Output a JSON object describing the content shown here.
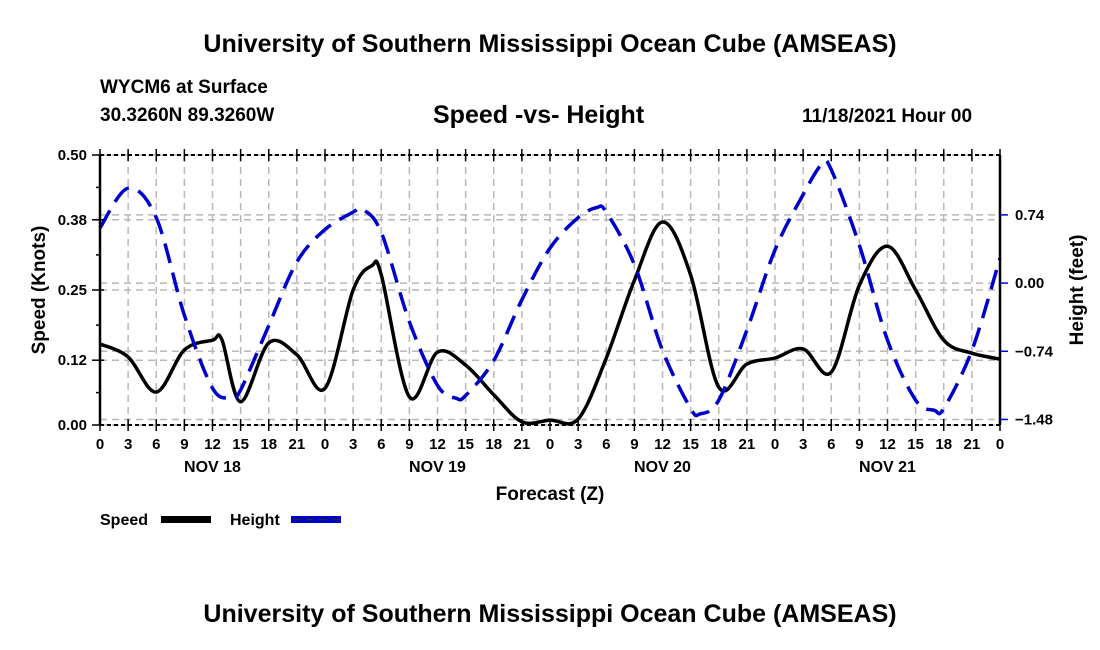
{
  "header": {
    "title": "University of Southern Mississippi Ocean Cube (AMSEAS)",
    "station": "WYCM6 at Surface",
    "coords": "30.3260N  89.3260W",
    "subtitle": "Speed -vs- Height",
    "datetime": "11/18/2021 Hour 00"
  },
  "footer": {
    "title": "University of Southern Mississippi Ocean Cube (AMSEAS)"
  },
  "chart_data": {
    "type": "line",
    "title": "Speed -vs- Height",
    "xlabel": "Forecast (Z)",
    "ylabel": "Speed (Knots)",
    "y2label": "Height (feet)",
    "xlim": [
      0,
      96
    ],
    "ylim": [
      0.0,
      0.5
    ],
    "y2lim": [
      -1.54,
      1.39
    ],
    "grid": true,
    "legend": "bottom-left",
    "x_ticks": [
      0,
      3,
      6,
      9,
      12,
      15,
      18,
      21,
      24,
      27,
      30,
      33,
      36,
      39,
      42,
      45,
      48,
      51,
      54,
      57,
      60,
      63,
      66,
      69,
      72,
      75,
      78,
      81,
      84,
      87,
      90,
      93,
      96
    ],
    "x_tick_labels": [
      "0",
      "3",
      "6",
      "9",
      "12",
      "15",
      "18",
      "21",
      "0",
      "3",
      "6",
      "9",
      "12",
      "15",
      "18",
      "21",
      "0",
      "3",
      "6",
      "9",
      "12",
      "15",
      "18",
      "21",
      "0",
      "3",
      "6",
      "9",
      "12",
      "15",
      "18",
      "21",
      "0"
    ],
    "day_labels": [
      {
        "label": "NOV 18",
        "hour": 12
      },
      {
        "label": "NOV 19",
        "hour": 36
      },
      {
        "label": "NOV 20",
        "hour": 60
      },
      {
        "label": "NOV 21",
        "hour": 84
      }
    ],
    "y_ticks": [
      0.0,
      0.12,
      0.25,
      0.38,
      0.5
    ],
    "y_tick_labels": [
      "0.00",
      "0.12",
      "0.25",
      "0.38",
      "0.50"
    ],
    "y2_ticks": [
      0.74,
      0.0,
      -0.74,
      -1.48
    ],
    "y2_tick_labels": [
      "0.74",
      "0.00",
      "−0.74",
      "−1.48"
    ],
    "series": [
      {
        "name": "Speed",
        "axis": "left",
        "color": "#000000",
        "style": "solid",
        "x": [
          0,
          3,
          6,
          9,
          12,
          13,
          15,
          18,
          21,
          24,
          27,
          29,
          30,
          33,
          36,
          39,
          42,
          45,
          48,
          51,
          54,
          57,
          60,
          63,
          66,
          69,
          72,
          75,
          78,
          81,
          84,
          87,
          90,
          93,
          96
        ],
        "values": [
          0.15,
          0.126,
          0.061,
          0.139,
          0.157,
          0.158,
          0.043,
          0.152,
          0.13,
          0.068,
          0.25,
          0.295,
          0.278,
          0.052,
          0.135,
          0.111,
          0.056,
          0.006,
          0.009,
          0.011,
          0.124,
          0.268,
          0.376,
          0.278,
          0.07,
          0.113,
          0.124,
          0.141,
          0.098,
          0.259,
          0.331,
          0.25,
          0.157,
          0.133,
          0.122
        ]
      },
      {
        "name": "Height",
        "axis": "right",
        "color": "#0000cc",
        "style": "dashed",
        "x": [
          0,
          3,
          6,
          9,
          12,
          14,
          15,
          18,
          21,
          24,
          27,
          28,
          30,
          33,
          36,
          38,
          39,
          42,
          45,
          48,
          51,
          53,
          54,
          57,
          60,
          63,
          64,
          66,
          69,
          72,
          75,
          77,
          78,
          81,
          84,
          87,
          89,
          90,
          93,
          96
        ],
        "values": [
          0.6,
          1.03,
          0.71,
          -0.35,
          -1.14,
          -1.24,
          -1.16,
          -0.46,
          0.23,
          0.58,
          0.77,
          0.8,
          0.55,
          -0.42,
          -1.11,
          -1.25,
          -1.22,
          -0.84,
          -0.18,
          0.38,
          0.71,
          0.82,
          0.77,
          0.2,
          -0.73,
          -1.36,
          -1.42,
          -1.27,
          -0.51,
          0.36,
          0.96,
          1.29,
          1.23,
          0.41,
          -0.62,
          -1.27,
          -1.38,
          -1.36,
          -0.73,
          0.27
        ]
      }
    ]
  },
  "legend": {
    "items": [
      {
        "label": "Speed",
        "color": "#000000",
        "style": "solid"
      },
      {
        "label": "Height",
        "color": "#0000cc",
        "style": "dashed"
      }
    ]
  }
}
